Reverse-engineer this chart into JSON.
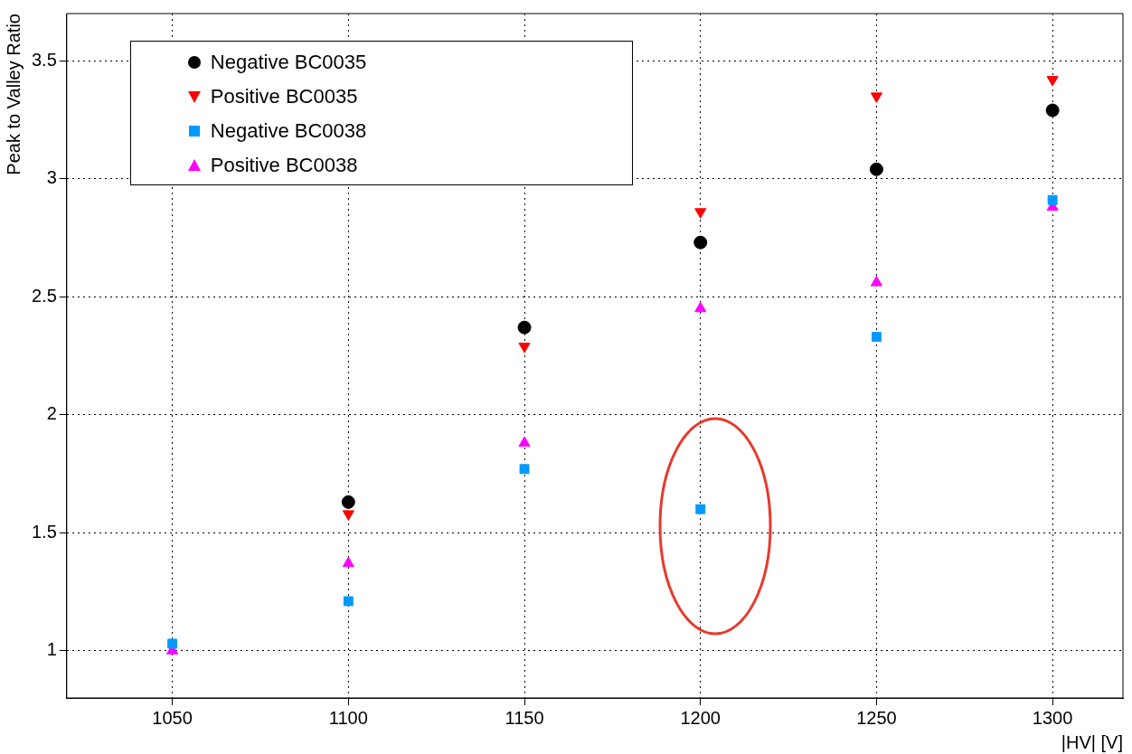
{
  "chart_data": {
    "type": "scatter",
    "xlabel": "|HV| [V]",
    "ylabel": "Peak to Valley Ratio",
    "xlim": [
      1020,
      1320
    ],
    "xticks": [
      1050,
      1100,
      1150,
      1200,
      1250,
      1300
    ],
    "ylim": [
      0.8,
      3.7
    ],
    "yticks": [
      1,
      1.5,
      2,
      2.5,
      3,
      3.5
    ],
    "grid": true,
    "legend": "top left",
    "series": [
      {
        "name": "Negative BC0035",
        "color": "#000000",
        "marker": "circle",
        "x": [
          1100,
          1150,
          1200,
          1250,
          1300
        ],
        "values": [
          1.63,
          2.37,
          2.73,
          3.04,
          3.29
        ]
      },
      {
        "name": "Positive BC0035",
        "color": "#ff0000",
        "marker": "triangle-down",
        "x": [
          1100,
          1150,
          1200,
          1250,
          1300
        ],
        "values": [
          1.58,
          2.29,
          2.86,
          3.35,
          3.42
        ]
      },
      {
        "name": "Negative BC0038",
        "color": "#0099ff",
        "marker": "square",
        "x": [
          1050,
          1100,
          1150,
          1200,
          1250,
          1300
        ],
        "values": [
          1.03,
          1.21,
          1.77,
          1.6,
          2.33,
          2.91
        ]
      },
      {
        "name": "Positive BC0038",
        "color": "#ff00ff",
        "marker": "triangle",
        "x": [
          1050,
          1100,
          1150,
          1200,
          1250,
          1300
        ],
        "values": [
          1.0,
          1.37,
          1.88,
          2.45,
          2.56,
          2.88
        ]
      }
    ]
  }
}
